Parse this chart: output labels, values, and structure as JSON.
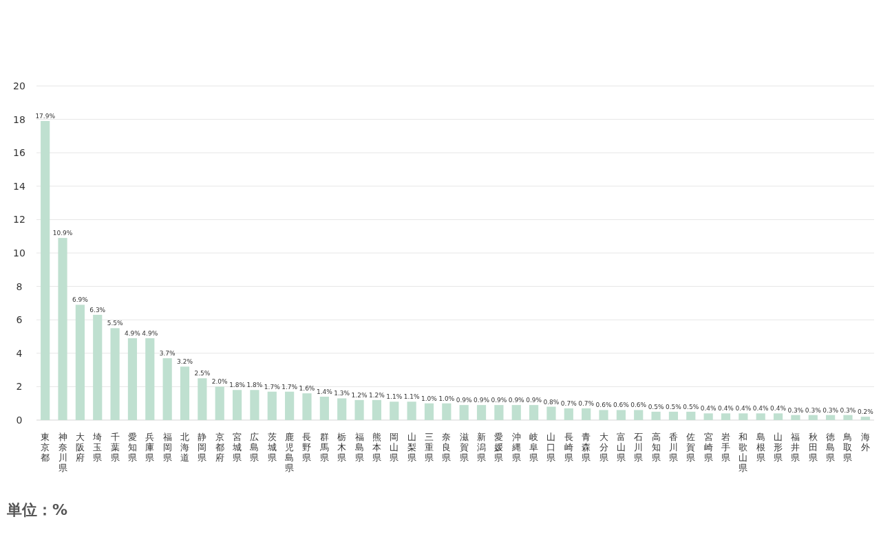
{
  "chart_data": {
    "type": "bar",
    "categories": [
      "東京都",
      "神奈川県",
      "大阪府",
      "埼玉県",
      "千葉県",
      "愛知県",
      "兵庫県",
      "福岡県",
      "北海道",
      "静岡県",
      "京都府",
      "宮城県",
      "広島県",
      "茨城県",
      "鹿児島県",
      "長野県",
      "群馬県",
      "栃木県",
      "福島県",
      "熊本県",
      "岡山県",
      "山梨県",
      "三重県",
      "奈良県",
      "滋賀県",
      "新潟県",
      "愛媛県",
      "沖縄県",
      "岐阜県",
      "山口県",
      "長崎県",
      "青森県",
      "大分県",
      "富山県",
      "石川県",
      "高知県",
      "香川県",
      "佐賀県",
      "宮崎県",
      "岩手県",
      "和歌山県",
      "島根県",
      "山形県",
      "福井県",
      "秋田県",
      "徳島県",
      "鳥取県",
      "海外"
    ],
    "values": [
      17.9,
      10.9,
      6.9,
      6.3,
      5.5,
      4.9,
      4.9,
      3.7,
      3.2,
      2.5,
      2.0,
      1.8,
      1.8,
      1.7,
      1.7,
      1.6,
      1.4,
      1.3,
      1.2,
      1.2,
      1.1,
      1.1,
      1.0,
      1.0,
      0.9,
      0.9,
      0.9,
      0.9,
      0.9,
      0.8,
      0.7,
      0.7,
      0.6,
      0.6,
      0.6,
      0.5,
      0.5,
      0.5,
      0.4,
      0.4,
      0.4,
      0.4,
      0.4,
      0.3,
      0.3,
      0.3,
      0.3,
      0.2
    ],
    "value_labels": [
      "17.9%",
      "10.9%",
      "6.9%",
      "6.3%",
      "5.5%",
      "4.9%",
      "4.9%",
      "3.7%",
      "3.2%",
      "2.5%",
      "2.0%",
      "1.8%",
      "1.8%",
      "1.7%",
      "1.7%",
      "1.6%",
      "1.4%",
      "1.3%",
      "1.2%",
      "1.2%",
      "1.1%",
      "1.1%",
      "1.0%",
      "1.0%",
      "0.9%",
      "0.9%",
      "0.9%",
      "0.9%",
      "0.9%",
      "0.8%",
      "0.7%",
      "0.7%",
      "0.6%",
      "0.6%",
      "0.6%",
      "0.5%",
      "0.5%",
      "0.5%",
      "0.4%",
      "0.4%",
      "0.4%",
      "0.4%",
      "0.4%",
      "0.3%",
      "0.3%",
      "0.3%",
      "0.3%",
      "0.2%"
    ],
    "color": "#bfe0d0",
    "ylim": [
      0,
      20
    ],
    "yticks": [
      0,
      2,
      4,
      6,
      8,
      10,
      12,
      14,
      16,
      18,
      20
    ],
    "grid": "y",
    "annotations": [
      "単位：%"
    ]
  }
}
